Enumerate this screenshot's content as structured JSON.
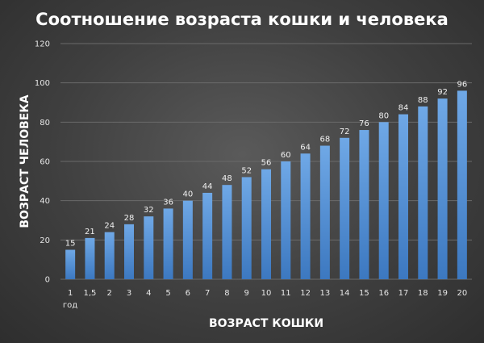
{
  "chart_data": {
    "type": "bar",
    "title": "Соотношение возраста кошки и человека",
    "xlabel": "ВОЗРАСТ КОШКИ",
    "ylabel": "ВОЗРАСТ ЧЕЛОВЕКА",
    "categories": [
      "1",
      "1,5",
      "2",
      "3",
      "4",
      "5",
      "6",
      "7",
      "8",
      "9",
      "10",
      "11",
      "12",
      "13",
      "14",
      "15",
      "16",
      "17",
      "18",
      "19",
      "20"
    ],
    "first_category_sublabel": "год",
    "values": [
      15,
      21,
      24,
      28,
      32,
      36,
      40,
      44,
      48,
      52,
      56,
      60,
      64,
      68,
      72,
      76,
      80,
      84,
      88,
      92,
      96
    ],
    "ylim": [
      0,
      120
    ],
    "yticks": [
      0,
      20,
      40,
      60,
      80,
      100,
      120
    ],
    "grid": true,
    "legend": "none",
    "colors": {
      "bar_top": "#6fa8e6",
      "bar_bottom": "#3c78c0",
      "grid": "#6a6a6a"
    }
  }
}
